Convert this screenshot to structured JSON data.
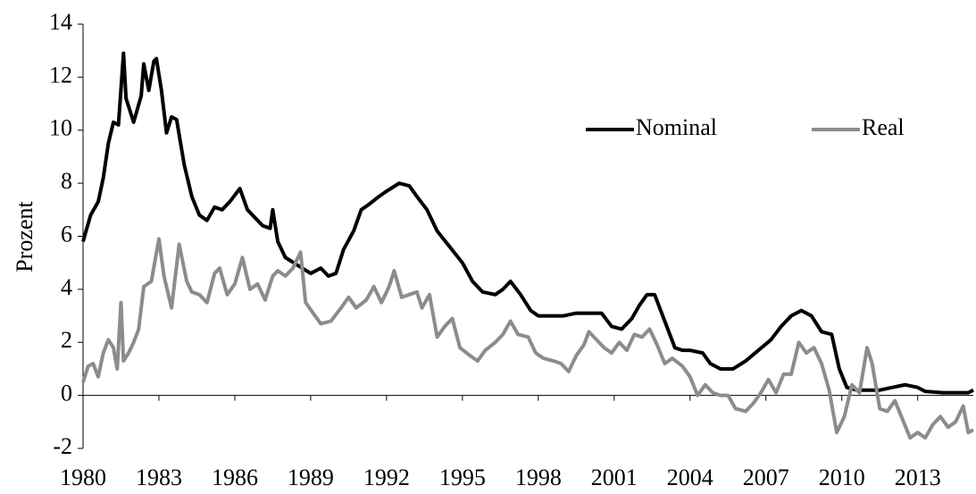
{
  "chart_data": {
    "type": "line",
    "y_label": "Prozent",
    "xlim": [
      1980,
      2015.2
    ],
    "xticks": [
      1980,
      1983,
      1986,
      1989,
      1992,
      1995,
      1998,
      2001,
      2004,
      2007,
      2010,
      2013
    ],
    "ylim": [
      -2,
      14
    ],
    "yticks": [
      -2,
      0,
      2,
      4,
      6,
      8,
      10,
      12,
      14
    ],
    "legend": "top-right",
    "series": [
      {
        "name": "Nominal",
        "color": "#000000",
        "x": [
          1980.0,
          1980.3,
          1980.6,
          1980.8,
          1981.0,
          1981.2,
          1981.4,
          1981.6,
          1981.7,
          1982.0,
          1982.3,
          1982.4,
          1982.6,
          1982.8,
          1982.9,
          1983.1,
          1983.3,
          1983.5,
          1983.7,
          1984.0,
          1984.3,
          1984.6,
          1984.9,
          1985.2,
          1985.5,
          1985.8,
          1986.2,
          1986.5,
          1986.8,
          1987.1,
          1987.4,
          1987.5,
          1987.7,
          1988.0,
          1988.5,
          1989.0,
          1989.4,
          1989.7,
          1990.0,
          1990.3,
          1990.7,
          1991.0,
          1991.3,
          1991.7,
          1992.0,
          1992.5,
          1992.9,
          1993.2,
          1993.6,
          1994.0,
          1994.5,
          1995.0,
          1995.4,
          1995.8,
          1996.3,
          1996.6,
          1996.9,
          1997.3,
          1997.7,
          1998.0,
          1998.5,
          1999.0,
          1999.5,
          2000.0,
          2000.5,
          2000.9,
          2001.3,
          2001.7,
          2002.0,
          2002.3,
          2002.6,
          2003.0,
          2003.4,
          2003.7,
          2004.0,
          2004.5,
          2004.8,
          2005.2,
          2005.7,
          2006.2,
          2006.7,
          2007.2,
          2007.6,
          2008.0,
          2008.4,
          2008.8,
          2009.2,
          2009.6,
          2009.9,
          2010.2,
          2010.6,
          2011.0,
          2011.5,
          2012.0,
          2012.5,
          2013.0,
          2013.3,
          2014.0,
          2014.5,
          2015.0,
          2015.2
        ],
        "values": [
          5.8,
          6.8,
          7.3,
          8.2,
          9.5,
          10.3,
          10.2,
          12.9,
          11.2,
          10.3,
          11.3,
          12.5,
          11.5,
          12.6,
          12.7,
          11.5,
          9.9,
          10.5,
          10.4,
          8.7,
          7.5,
          6.8,
          6.6,
          7.1,
          7.0,
          7.3,
          7.8,
          7.0,
          6.7,
          6.4,
          6.3,
          7.0,
          5.8,
          5.2,
          4.9,
          4.6,
          4.8,
          4.5,
          4.6,
          5.5,
          6.2,
          7.0,
          7.2,
          7.5,
          7.7,
          8.0,
          7.9,
          7.5,
          7.0,
          6.2,
          5.6,
          5.0,
          4.3,
          3.9,
          3.8,
          4.0,
          4.3,
          3.8,
          3.2,
          3.0,
          3.0,
          3.0,
          3.1,
          3.1,
          3.1,
          2.6,
          2.5,
          2.9,
          3.4,
          3.8,
          3.8,
          2.8,
          1.8,
          1.7,
          1.7,
          1.6,
          1.2,
          1.0,
          1.0,
          1.3,
          1.7,
          2.1,
          2.6,
          3.0,
          3.2,
          3.0,
          2.4,
          2.3,
          1.0,
          0.3,
          0.2,
          0.2,
          0.2,
          0.3,
          0.4,
          0.3,
          0.15,
          0.1,
          0.1,
          0.1,
          0.2
        ]
      },
      {
        "name": "Real",
        "color": "#8c8c8c",
        "x": [
          1980.0,
          1980.2,
          1980.4,
          1980.6,
          1980.8,
          1981.0,
          1981.2,
          1981.35,
          1981.5,
          1981.6,
          1981.8,
          1982.0,
          1982.2,
          1982.4,
          1982.7,
          1983.0,
          1983.2,
          1983.5,
          1983.8,
          1984.1,
          1984.3,
          1984.6,
          1984.9,
          1985.2,
          1985.4,
          1985.7,
          1986.0,
          1986.3,
          1986.6,
          1986.9,
          1987.2,
          1987.5,
          1987.7,
          1988.0,
          1988.3,
          1988.6,
          1988.8,
          1989.1,
          1989.4,
          1989.8,
          1990.2,
          1990.5,
          1990.8,
          1991.2,
          1991.5,
          1991.8,
          1992.1,
          1992.3,
          1992.6,
          1992.9,
          1993.2,
          1993.4,
          1993.7,
          1994.0,
          1994.3,
          1994.6,
          1994.9,
          1995.3,
          1995.6,
          1995.9,
          1996.3,
          1996.6,
          1996.9,
          1997.2,
          1997.6,
          1997.9,
          1998.2,
          1998.6,
          1998.9,
          1999.2,
          1999.5,
          1999.8,
          2000.0,
          2000.3,
          2000.6,
          2000.9,
          2001.2,
          2001.5,
          2001.8,
          2002.1,
          2002.4,
          2002.7,
          2003.0,
          2003.3,
          2003.7,
          2004.0,
          2004.3,
          2004.6,
          2004.9,
          2005.2,
          2005.5,
          2005.8,
          2006.2,
          2006.5,
          2006.8,
          2007.1,
          2007.4,
          2007.7,
          2008.0,
          2008.3,
          2008.6,
          2008.9,
          2009.2,
          2009.5,
          2009.8,
          2010.1,
          2010.4,
          2010.7,
          2011.0,
          2011.2,
          2011.5,
          2011.8,
          2012.1,
          2012.4,
          2012.7,
          2013.0,
          2013.3,
          2013.6,
          2013.9,
          2014.2,
          2014.5,
          2014.8,
          2015.0,
          2015.2
        ],
        "values": [
          0.5,
          1.1,
          1.2,
          0.7,
          1.6,
          2.1,
          1.8,
          1.0,
          3.5,
          1.3,
          1.6,
          2.0,
          2.5,
          4.1,
          4.3,
          5.9,
          4.5,
          3.3,
          5.7,
          4.3,
          3.9,
          3.8,
          3.5,
          4.6,
          4.8,
          3.8,
          4.2,
          5.2,
          4.0,
          4.2,
          3.6,
          4.5,
          4.7,
          4.5,
          4.8,
          5.4,
          3.5,
          3.1,
          2.7,
          2.8,
          3.3,
          3.7,
          3.3,
          3.6,
          4.1,
          3.5,
          4.1,
          4.7,
          3.7,
          3.8,
          3.9,
          3.3,
          3.8,
          2.2,
          2.6,
          2.9,
          1.8,
          1.5,
          1.3,
          1.7,
          2.0,
          2.3,
          2.8,
          2.3,
          2.2,
          1.6,
          1.4,
          1.3,
          1.2,
          0.9,
          1.5,
          1.9,
          2.4,
          2.1,
          1.8,
          1.6,
          2.0,
          1.7,
          2.3,
          2.2,
          2.5,
          1.9,
          1.2,
          1.4,
          1.1,
          0.7,
          0.0,
          0.4,
          0.1,
          0.0,
          0.0,
          -0.5,
          -0.6,
          -0.3,
          0.1,
          0.6,
          0.1,
          0.8,
          0.8,
          2.0,
          1.6,
          1.8,
          1.2,
          0.2,
          -1.4,
          -0.8,
          0.4,
          0.1,
          1.8,
          1.2,
          -0.5,
          -0.6,
          -0.2,
          -0.9,
          -1.6,
          -1.4,
          -1.6,
          -1.1,
          -0.8,
          -1.2,
          -1.0,
          -0.4,
          -1.4,
          -1.3
        ]
      }
    ]
  }
}
